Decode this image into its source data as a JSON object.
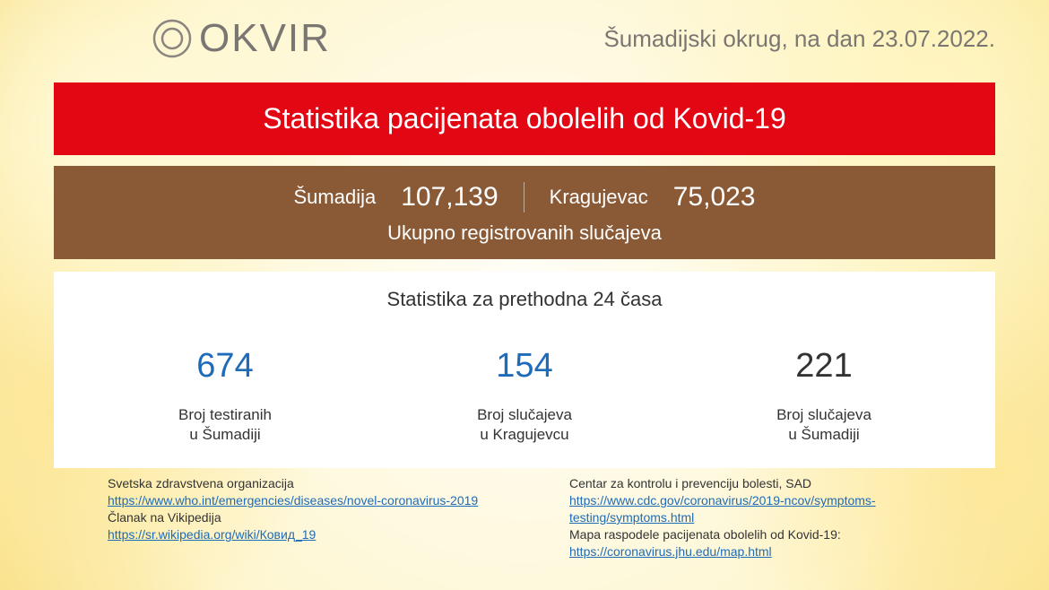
{
  "header": {
    "logo_text": "OKVIR",
    "date_prefix": "Šumadijski okrug, na dan ",
    "date": "23.07.2022.",
    "logo_stroke_color": "#8a857f"
  },
  "red_banner": {
    "text": "Statistika pacijenata obolelih od Kovid-19",
    "background_color": "#e30613",
    "text_color": "#ffffff"
  },
  "brown_banner": {
    "background_color": "#8a5a36",
    "text_color": "#ffffff",
    "region1_label": "Šumadija",
    "region1_value": "107,139",
    "region2_label": "Kragujevac",
    "region2_value": "75,023",
    "subtitle": "Ukupno registrovanih slučajeva",
    "divider_color": "#ffffff"
  },
  "white_panel": {
    "background_color": "#ffffff",
    "title": "Statistika za prethodna 24 časa",
    "stats": [
      {
        "value": "674",
        "color": "#1e6bb8",
        "label": "Broj testiranih\nu Šumadiji"
      },
      {
        "value": "154",
        "color": "#1e6bb8",
        "label": "Broj slučajeva\nu Kragujevcu"
      },
      {
        "value": "221",
        "color": "#333333",
        "label": "Broj slučajeva\nu Šumadiji"
      }
    ]
  },
  "footer": {
    "link_color": "#1e6bb8",
    "text_color": "#333333",
    "left": [
      {
        "type": "label",
        "text": "Svetska zdravstvena organizacija"
      },
      {
        "type": "link",
        "text": "https://www.who.int/emergencies/diseases/novel-coronavirus-2019"
      },
      {
        "type": "label",
        "text": "Članak na Vikipedija"
      },
      {
        "type": "link",
        "text": "https://sr.wikipedia.org/wiki/Ковид_19"
      }
    ],
    "right": [
      {
        "type": "label",
        "text": "Centar za kontrolu i prevenciju bolesti, SAD"
      },
      {
        "type": "link",
        "text": "https://www.cdc.gov/coronavirus/2019-ncov/symptoms-testing/symptoms.html"
      },
      {
        "type": "label",
        "text": "Mapa raspodele pacijenata obolelih od Kovid-19:"
      },
      {
        "type": "link",
        "text": "https://coronavirus.jhu.edu/map.html"
      }
    ]
  }
}
